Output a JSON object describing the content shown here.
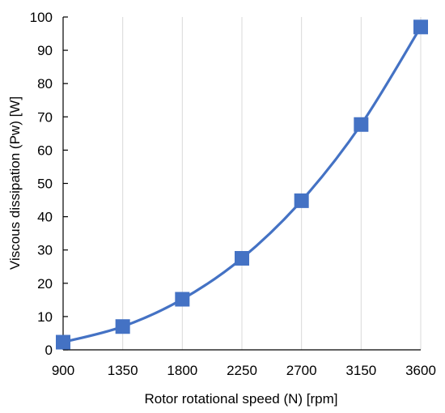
{
  "chart_data": {
    "type": "line",
    "xlabel": "Rotor rotational speed (N) [rpm]",
    "ylabel": "Viscous dissipation (Pw) [W]",
    "x": [
      900,
      1350,
      1800,
      2250,
      2700,
      3150,
      3600
    ],
    "series": [
      {
        "values": [
          2.3,
          7.0,
          15.2,
          27.5,
          44.8,
          67.7,
          97.0
        ],
        "color": "#4472C4",
        "marker": "square",
        "smooth": true
      }
    ],
    "xticks": [
      "900",
      "1350",
      "1800",
      "2250",
      "2700",
      "3150",
      "3600"
    ],
    "yticks": [
      "0",
      "10",
      "20",
      "30",
      "40",
      "50",
      "60",
      "70",
      "80",
      "90",
      "100"
    ],
    "xlim": [
      900,
      3600
    ],
    "ylim": [
      0,
      100
    ],
    "grid": "vertical",
    "legend": "none"
  }
}
